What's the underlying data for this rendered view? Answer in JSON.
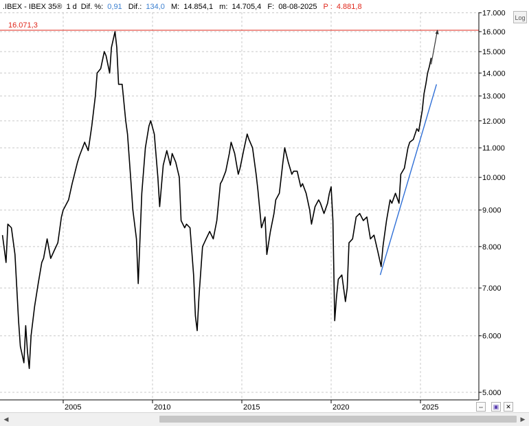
{
  "header": {
    "symbol": ".IBEX - IBEX 35®",
    "interval": "1 d",
    "pct_label": "Dif. %:",
    "pct_value": "0,91",
    "diff_label": "Dif.:",
    "diff_value": "134,0",
    "max_label": "M:",
    "max_value": "14.854,1",
    "min_label": "m:",
    "min_value": "14.705,4",
    "date_label": "F:",
    "date_value": "08-08-2025",
    "p_label": "P :",
    "p_value": "4.881,8"
  },
  "controls": {
    "log_label": "Log"
  },
  "colors": {
    "price": "#000000",
    "level_line": "#e0261a",
    "trend_line": "#2f6fd6",
    "projection": "#333333",
    "grid": "#c8c8c8",
    "blue_text": "#3a7fd0",
    "red_text": "#e0261a"
  },
  "chart_data": {
    "type": "line",
    "title": "",
    "xlabel": "",
    "ylabel": "",
    "yscale": "log",
    "ylim": [
      4800,
      17000
    ],
    "xlim": [
      2001.6,
      2027.0
    ],
    "y_ticks": [
      17000,
      16000,
      15000,
      14000,
      13000,
      12000,
      11000,
      10000,
      9000,
      8000,
      7000,
      6000,
      5000
    ],
    "y_tick_labels": [
      "17.000",
      "16.000",
      "15.000",
      "14.000",
      "13.000",
      "12.000",
      "11.000",
      "10.000",
      "9.000",
      "8.000",
      "7.000",
      "6.000",
      "5.000"
    ],
    "x_ticks": [
      2005,
      2010,
      2015,
      2020,
      2025
    ],
    "x_tick_labels": [
      "2005",
      "2010",
      "2015",
      "2020",
      "2025"
    ],
    "grid": true,
    "series": [
      {
        "values_xy": [
          [
            2001.6,
            8300
          ],
          [
            2001.8,
            7600
          ],
          [
            2001.9,
            8600
          ],
          [
            2002.1,
            8500
          ],
          [
            2002.3,
            7800
          ],
          [
            2002.5,
            6300
          ],
          [
            2002.6,
            5800
          ],
          [
            2002.8,
            5500
          ],
          [
            2002.9,
            6200
          ],
          [
            2003.0,
            5700
          ],
          [
            2003.1,
            5400
          ],
          [
            2003.2,
            6000
          ],
          [
            2003.4,
            6600
          ],
          [
            2003.6,
            7100
          ],
          [
            2003.8,
            7600
          ],
          [
            2003.9,
            7700
          ],
          [
            2004.1,
            8200
          ],
          [
            2004.3,
            7700
          ],
          [
            2004.5,
            7900
          ],
          [
            2004.7,
            8100
          ],
          [
            2004.9,
            8800
          ],
          [
            2005.0,
            9000
          ],
          [
            2005.3,
            9300
          ],
          [
            2005.5,
            9800
          ],
          [
            2005.8,
            10500
          ],
          [
            2005.9,
            10700
          ],
          [
            2006.2,
            11200
          ],
          [
            2006.4,
            10900
          ],
          [
            2006.6,
            11800
          ],
          [
            2006.8,
            13000
          ],
          [
            2006.9,
            14000
          ],
          [
            2007.1,
            14200
          ],
          [
            2007.3,
            15000
          ],
          [
            2007.4,
            14800
          ],
          [
            2007.6,
            14000
          ],
          [
            2007.7,
            15200
          ],
          [
            2007.9,
            16000
          ],
          [
            2008.0,
            15200
          ],
          [
            2008.1,
            13500
          ],
          [
            2008.3,
            13500
          ],
          [
            2008.5,
            12000
          ],
          [
            2008.6,
            11500
          ],
          [
            2008.8,
            9800
          ],
          [
            2008.9,
            9000
          ],
          [
            2009.1,
            8200
          ],
          [
            2009.2,
            7100
          ],
          [
            2009.4,
            9500
          ],
          [
            2009.6,
            11000
          ],
          [
            2009.8,
            11800
          ],
          [
            2009.9,
            12000
          ],
          [
            2010.1,
            11500
          ],
          [
            2010.3,
            10000
          ],
          [
            2010.4,
            9100
          ],
          [
            2010.6,
            10400
          ],
          [
            2010.8,
            10900
          ],
          [
            2011.0,
            10400
          ],
          [
            2011.1,
            10800
          ],
          [
            2011.3,
            10500
          ],
          [
            2011.5,
            10000
          ],
          [
            2011.6,
            8700
          ],
          [
            2011.8,
            8500
          ],
          [
            2011.9,
            8600
          ],
          [
            2012.1,
            8500
          ],
          [
            2012.3,
            7300
          ],
          [
            2012.4,
            6400
          ],
          [
            2012.5,
            6100
          ],
          [
            2012.6,
            6800
          ],
          [
            2012.8,
            8000
          ],
          [
            2013.0,
            8200
          ],
          [
            2013.2,
            8400
          ],
          [
            2013.4,
            8200
          ],
          [
            2013.6,
            8700
          ],
          [
            2013.8,
            9800
          ],
          [
            2013.9,
            9900
          ],
          [
            2014.1,
            10200
          ],
          [
            2014.3,
            10800
          ],
          [
            2014.4,
            11200
          ],
          [
            2014.6,
            10800
          ],
          [
            2014.8,
            10100
          ],
          [
            2014.9,
            10300
          ],
          [
            2015.1,
            10900
          ],
          [
            2015.3,
            11500
          ],
          [
            2015.4,
            11300
          ],
          [
            2015.6,
            11000
          ],
          [
            2015.8,
            10100
          ],
          [
            2015.9,
            9600
          ],
          [
            2016.1,
            8500
          ],
          [
            2016.3,
            8800
          ],
          [
            2016.4,
            7800
          ],
          [
            2016.6,
            8400
          ],
          [
            2016.8,
            8900
          ],
          [
            2016.9,
            9300
          ],
          [
            2017.1,
            9500
          ],
          [
            2017.3,
            10500
          ],
          [
            2017.4,
            11000
          ],
          [
            2017.6,
            10500
          ],
          [
            2017.8,
            10100
          ],
          [
            2017.9,
            10200
          ],
          [
            2018.1,
            10200
          ],
          [
            2018.3,
            9700
          ],
          [
            2018.4,
            9800
          ],
          [
            2018.6,
            9500
          ],
          [
            2018.8,
            9000
          ],
          [
            2018.9,
            8600
          ],
          [
            2019.1,
            9100
          ],
          [
            2019.3,
            9300
          ],
          [
            2019.4,
            9200
          ],
          [
            2019.6,
            8900
          ],
          [
            2019.8,
            9200
          ],
          [
            2019.9,
            9500
          ],
          [
            2020.0,
            9700
          ],
          [
            2020.1,
            8700
          ],
          [
            2020.2,
            6300
          ],
          [
            2020.3,
            6800
          ],
          [
            2020.4,
            7200
          ],
          [
            2020.6,
            7300
          ],
          [
            2020.8,
            6700
          ],
          [
            2020.9,
            7000
          ],
          [
            2021.0,
            8100
          ],
          [
            2021.2,
            8200
          ],
          [
            2021.4,
            8800
          ],
          [
            2021.6,
            8900
          ],
          [
            2021.8,
            8700
          ],
          [
            2022.0,
            8800
          ],
          [
            2022.2,
            8200
          ],
          [
            2022.4,
            8300
          ],
          [
            2022.6,
            7900
          ],
          [
            2022.8,
            7500
          ],
          [
            2022.9,
            8000
          ],
          [
            2023.1,
            8700
          ],
          [
            2023.3,
            9300
          ],
          [
            2023.4,
            9200
          ],
          [
            2023.6,
            9500
          ],
          [
            2023.8,
            9200
          ],
          [
            2023.9,
            10100
          ],
          [
            2024.1,
            10300
          ],
          [
            2024.3,
            11000
          ],
          [
            2024.4,
            11200
          ],
          [
            2024.6,
            11300
          ],
          [
            2024.8,
            11700
          ],
          [
            2024.9,
            11600
          ],
          [
            2025.1,
            12400
          ],
          [
            2025.2,
            13100
          ],
          [
            2025.3,
            13500
          ],
          [
            2025.4,
            14000
          ],
          [
            2025.5,
            14300
          ],
          [
            2025.6,
            14700
          ]
        ]
      }
    ],
    "annotations": [
      {
        "type": "hline",
        "value": 16071.3,
        "label": "16.071,3"
      },
      {
        "type": "trendline",
        "from": [
          2022.75,
          7300
        ],
        "to": [
          2025.9,
          13500
        ]
      },
      {
        "type": "projection",
        "from": [
          2025.6,
          14400
        ],
        "to": [
          2025.95,
          16071.3
        ]
      }
    ]
  }
}
